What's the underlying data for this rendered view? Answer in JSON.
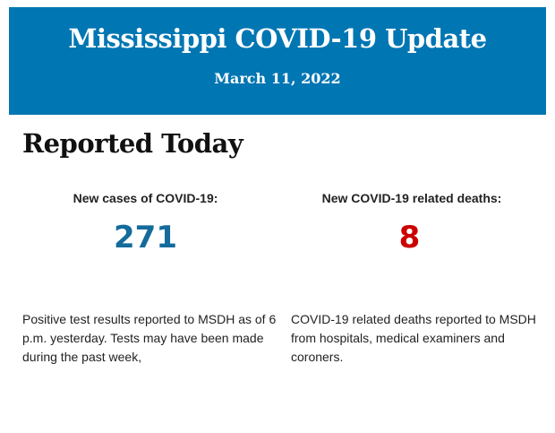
{
  "header": {
    "title": "Mississippi COVID-19 Update",
    "date": "March 11, 2022"
  },
  "colors": {
    "header_bg": "#0076b3",
    "cases": "#146b9c",
    "deaths": "#cc0000"
  },
  "section_title": "Reported Today",
  "cases": {
    "label": "New cases of COVID-19:",
    "value": "271",
    "description": "Positive test results reported to MSDH as of 6 p.m. yesterday. Tests may have been made during the past week,"
  },
  "deaths": {
    "label": "New COVID-19 related deaths:",
    "value": "8",
    "description": "COVID-19 related deaths reported to MSDH from hospitals, medical examiners and coroners."
  }
}
